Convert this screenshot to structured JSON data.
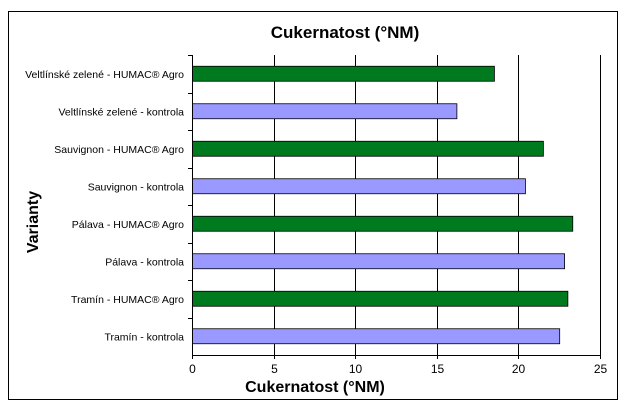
{
  "chart_data": {
    "type": "bar",
    "orientation": "horizontal",
    "title": "Cukernatost (°NM)",
    "xlabel": "Cukernatost (°NM)",
    "ylabel": "Varianty",
    "xlim": [
      0,
      25
    ],
    "xticks": [
      0,
      5,
      10,
      15,
      20,
      25
    ],
    "grid": "vertical",
    "categories": [
      "Veltlínské zelené - HUMAC® Agro",
      "Veltlínské zelené - kontrola",
      "Sauvignon - HUMAC® Agro",
      "Sauvignon - kontrola",
      "Pálava - HUMAC® Agro",
      "Pálava - kontrola",
      "Tramín - HUMAC® Agro",
      "Tramín - kontrola"
    ],
    "values": [
      18.5,
      16.2,
      21.5,
      20.4,
      23.3,
      22.8,
      23.0,
      22.5
    ],
    "bar_colors": [
      "#007a1f",
      "#9999ff",
      "#007a1f",
      "#9999ff",
      "#007a1f",
      "#9999ff",
      "#007a1f",
      "#9999ff"
    ]
  }
}
